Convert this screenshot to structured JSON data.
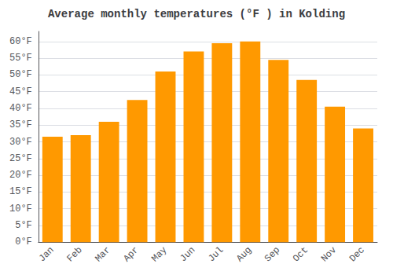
{
  "chart_data": {
    "type": "bar",
    "title": "Average monthly temperatures (°F ) in Kolding",
    "categories": [
      "Jan",
      "Feb",
      "Mar",
      "Apr",
      "May",
      "Jun",
      "Jul",
      "Aug",
      "Sep",
      "Oct",
      "Nov",
      "Dec"
    ],
    "values": [
      31.5,
      32.0,
      36.0,
      42.5,
      51.0,
      57.0,
      59.5,
      60.0,
      54.5,
      48.5,
      40.5,
      34.0
    ],
    "color": "#FF9900",
    "ylim": [
      0,
      63
    ],
    "yticks": [
      {
        "value": 0,
        "label": "0°F"
      },
      {
        "value": 5,
        "label": "5°F"
      },
      {
        "value": 10,
        "label": "10°F"
      },
      {
        "value": 15,
        "label": "15°F"
      },
      {
        "value": 20,
        "label": "20°F"
      },
      {
        "value": 25,
        "label": "25°F"
      },
      {
        "value": 30,
        "label": "30°F"
      },
      {
        "value": 35,
        "label": "35°F"
      },
      {
        "value": 40,
        "label": "40°F"
      },
      {
        "value": 45,
        "label": "45°F"
      },
      {
        "value": 50,
        "label": "50°F"
      },
      {
        "value": 55,
        "label": "55°F"
      },
      {
        "value": 60,
        "label": "60°F"
      }
    ],
    "grid": true
  }
}
